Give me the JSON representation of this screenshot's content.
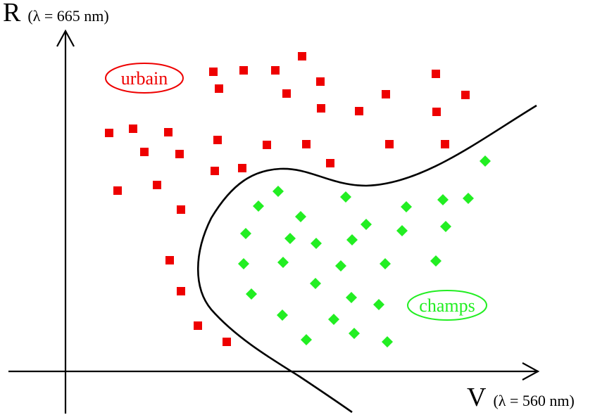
{
  "colors": {
    "urban": "#ee0000",
    "fields": "#22ee22",
    "ink": "#000000",
    "background": "#ffffff"
  },
  "axes": {
    "y_name": "R",
    "y_note": "(λ = 665 nm)",
    "x_name": "V",
    "x_note": "(λ = 560 nm)"
  },
  "classes": {
    "urban_label": "urbain",
    "fields_label": "champs"
  },
  "chart_data": {
    "type": "scatter",
    "title": "",
    "xlabel": "V (λ = 560 nm)",
    "ylabel": "R (λ = 665 nm)",
    "grid": false,
    "xlim": [
      -77,
      670
    ],
    "ylim": [
      -62,
      510
    ],
    "series": [
      {
        "name": "urbain",
        "marker": "square",
        "color": "#ee0000",
        "points": [
          [
            336,
            448
          ],
          [
            253,
            428
          ],
          [
            210,
            426
          ],
          [
            298,
            428
          ],
          [
            362,
            412
          ],
          [
            218,
            402
          ],
          [
            314,
            395
          ],
          [
            455,
            394
          ],
          [
            363,
            374
          ],
          [
            417,
            370
          ],
          [
            526,
            423
          ],
          [
            568,
            393
          ],
          [
            527,
            369
          ],
          [
            62,
            339
          ],
          [
            96,
            345
          ],
          [
            146,
            340
          ],
          [
            216,
            329
          ],
          [
            286,
            322
          ],
          [
            342,
            323
          ],
          [
            460,
            323
          ],
          [
            539,
            323
          ],
          [
            112,
            312
          ],
          [
            162,
            309
          ],
          [
            376,
            296
          ],
          [
            251,
            289
          ],
          [
            212,
            285
          ],
          [
            130,
            265
          ],
          [
            74,
            257
          ],
          [
            164,
            230
          ],
          [
            148,
            158
          ],
          [
            164,
            114
          ],
          [
            188,
            65
          ],
          [
            229,
            42
          ]
        ]
      },
      {
        "name": "champs",
        "marker": "diamond",
        "color": "#22ee22",
        "points": [
          [
            596,
            299
          ],
          [
            302,
            256
          ],
          [
            398,
            248
          ],
          [
            572,
            246
          ],
          [
            536,
            244
          ],
          [
            274,
            235
          ],
          [
            484,
            234
          ],
          [
            334,
            220
          ],
          [
            427,
            209
          ],
          [
            540,
            206
          ],
          [
            478,
            200
          ],
          [
            256,
            196
          ],
          [
            319,
            189
          ],
          [
            356,
            182
          ],
          [
            407,
            187
          ],
          [
            253,
            153
          ],
          [
            309,
            155
          ],
          [
            391,
            150
          ],
          [
            454,
            153
          ],
          [
            526,
            157
          ],
          [
            355,
            125
          ],
          [
            264,
            110
          ],
          [
            406,
            105
          ],
          [
            445,
            95
          ],
          [
            308,
            80
          ],
          [
            381,
            74
          ],
          [
            342,
            45
          ],
          [
            410,
            54
          ],
          [
            457,
            42
          ]
        ]
      }
    ]
  }
}
